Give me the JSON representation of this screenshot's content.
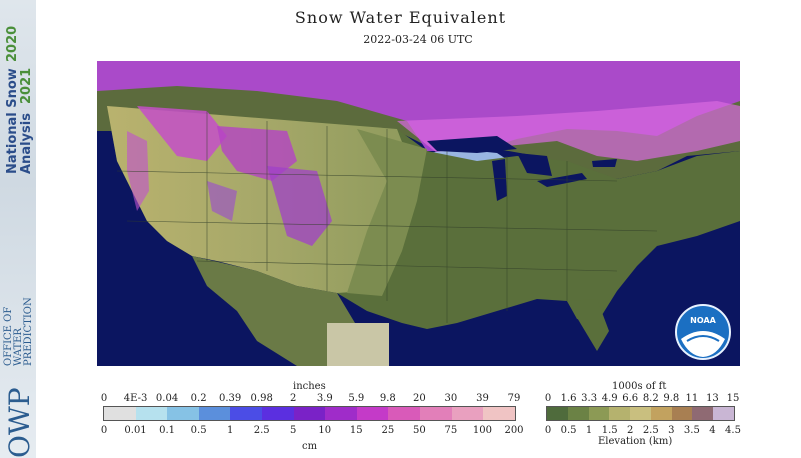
{
  "sidebar": {
    "brand_line1": "National Snow",
    "brand_line2": "Analysis",
    "year_2020": "2020",
    "year_2021": "2021",
    "owp_letters": "OWP",
    "owp_line1": "OFFICE OF",
    "owp_line2": "WATER",
    "owp_line3": "PREDICTION"
  },
  "header": {
    "title": "Snow Water Equivalent",
    "timestamp": "2022-03-24 06 UTC"
  },
  "badge": {
    "text": "NOAA"
  },
  "swe_legend": {
    "top_unit": "inches",
    "bottom_unit": "cm",
    "top_ticks": [
      "0",
      "4E-3",
      "0.04",
      "0.2",
      "0.39",
      "0.98",
      "2",
      "3.9",
      "5.9",
      "9.8",
      "20",
      "30",
      "39",
      "79"
    ],
    "bottom_ticks": [
      "0",
      "0.01",
      "0.1",
      "0.5",
      "1",
      "2.5",
      "5",
      "10",
      "15",
      "25",
      "50",
      "75",
      "100",
      "200"
    ],
    "colors": [
      "#e0e0e0",
      "#b6e1ee",
      "#86c2e5",
      "#5b8fdc",
      "#4b4de6",
      "#5b2fe0",
      "#7a22c7",
      "#9f2cc9",
      "#c43ac8",
      "#d95ab9",
      "#e27fb9",
      "#e9a0bf",
      "#f0c4c4"
    ]
  },
  "elev_legend": {
    "top_unit": "1000s of ft",
    "bottom_unit": "Elevation (km)",
    "top_ticks": [
      "0",
      "1.6",
      "3.3",
      "4.9",
      "6.6",
      "8.2",
      "9.8",
      "11",
      "13",
      "15"
    ],
    "bottom_ticks": [
      "0",
      "0.5",
      "1",
      "1.5",
      "2",
      "2.5",
      "3",
      "3.5",
      "4",
      "4.5"
    ],
    "colors": [
      "#4f6b3c",
      "#6b8245",
      "#8c9a55",
      "#b5b26e",
      "#c9bf7f",
      "#c2a25f",
      "#a87f52",
      "#8f6a73",
      "#c9b6d4"
    ]
  }
}
